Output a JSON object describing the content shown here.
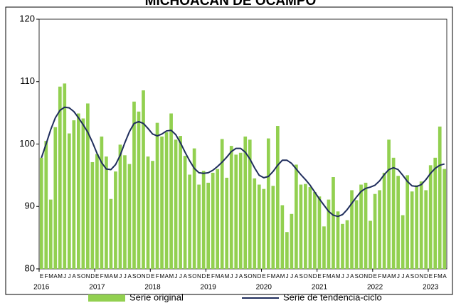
{
  "chart_data": {
    "type": "bar",
    "title": "MICHOACÁN DE OCAMPO",
    "categories": [
      "E",
      "F",
      "M",
      "A",
      "M",
      "J",
      "J",
      "A",
      "S",
      "O",
      "N",
      "D",
      "E",
      "F",
      "M",
      "A",
      "M",
      "J",
      "J",
      "A",
      "S",
      "O",
      "N",
      "D",
      "E",
      "F",
      "M",
      "A",
      "M",
      "J",
      "J",
      "A",
      "S",
      "O",
      "N",
      "D",
      "E",
      "F",
      "M",
      "A",
      "M",
      "J",
      "J",
      "A",
      "S",
      "O",
      "N",
      "D",
      "E",
      "F",
      "M",
      "A",
      "M",
      "J",
      "J",
      "A",
      "S",
      "O",
      "N",
      "D",
      "E",
      "F",
      "M",
      "A",
      "M",
      "J",
      "J",
      "A",
      "S",
      "O",
      "N",
      "D",
      "E",
      "F",
      "M",
      "A",
      "M",
      "J",
      "J",
      "A",
      "S",
      "O",
      "N",
      "D",
      "E",
      "F",
      "M",
      "A"
    ],
    "years": [
      "2016",
      "2017",
      "2018",
      "2019",
      "2020",
      "2021",
      "2022",
      "2023"
    ],
    "series": [
      {
        "name": "Serie original",
        "type": "bar",
        "color": "#92d050",
        "values": [
          97.8,
          100.5,
          91.1,
          102.7,
          109.2,
          109.7,
          101.7,
          103.8,
          104.9,
          104.1,
          106.5,
          97.1,
          98.4,
          101.2,
          98.0,
          91.2,
          95.6,
          99.9,
          98.2,
          96.8,
          106.8,
          105.2,
          108.6,
          98.0,
          97.3,
          103.4,
          101.2,
          101.9,
          104.9,
          100.7,
          101.3,
          98.1,
          95.1,
          99.3,
          93.5,
          95.7,
          93.8,
          95.4,
          96.0,
          100.8,
          94.6,
          99.7,
          98.3,
          98.6,
          101.2,
          100.7,
          94.5,
          93.5,
          92.8,
          100.9,
          93.3,
          102.9,
          90.2,
          85.9,
          88.8,
          96.7,
          93.5,
          93.6,
          93.1,
          92.3,
          91.6,
          86.8,
          91.1,
          94.7,
          89.2,
          87.2,
          87.8,
          92.6,
          91.0,
          93.5,
          93.8,
          87.7,
          92.0,
          92.6,
          95.4,
          100.7,
          97.8,
          94.9,
          88.6,
          95.0,
          92.4,
          93.4,
          94.0,
          92.6,
          96.6,
          97.8,
          102.8,
          96.0
        ]
      },
      {
        "name": "Serie de tendencia-ciclo",
        "type": "line",
        "color": "#1f2d5c",
        "values": [
          97.8,
          100.0,
          102.3,
          104.2,
          105.4,
          105.9,
          105.8,
          105.2,
          104.2,
          103.1,
          101.9,
          100.3,
          98.5,
          97.0,
          96.0,
          95.9,
          96.7,
          98.2,
          100.2,
          102.0,
          103.3,
          103.6,
          103.3,
          102.5,
          101.6,
          101.3,
          101.6,
          102.1,
          102.2,
          101.5,
          100.2,
          98.7,
          97.3,
          96.1,
          95.4,
          95.3,
          95.4,
          95.8,
          96.4,
          97.1,
          97.9,
          98.8,
          99.3,
          99.3,
          98.7,
          97.6,
          96.2,
          95.0,
          94.6,
          94.8,
          95.6,
          96.6,
          97.4,
          97.4,
          96.9,
          96.0,
          95.1,
          94.3,
          93.4,
          92.3,
          91.2,
          90.2,
          89.2,
          88.6,
          88.4,
          88.7,
          89.5,
          90.5,
          91.5,
          92.4,
          92.9,
          93.1,
          93.4,
          94.1,
          95.1,
          95.9,
          96.2,
          95.9,
          95.0,
          94.0,
          93.3,
          93.2,
          93.5,
          94.3,
          95.3,
          96.1,
          96.6,
          96.8
        ]
      }
    ],
    "ylim": [
      80,
      120
    ],
    "yticks": [
      80,
      90,
      100,
      110,
      120
    ],
    "grid": false
  }
}
